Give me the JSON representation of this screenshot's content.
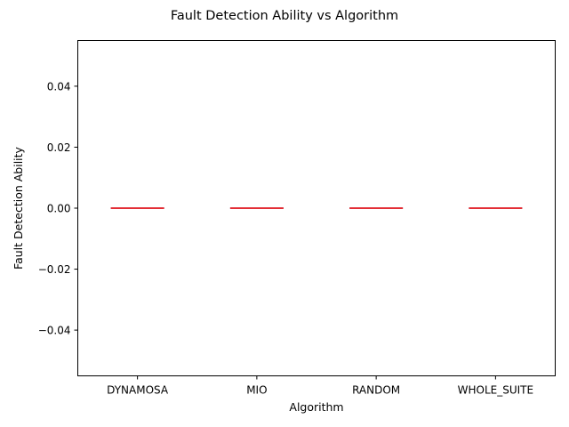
{
  "chart_data": {
    "type": "box",
    "title": "Fault Detection Ability vs Algorithm",
    "xlabel": "Algorithm",
    "ylabel": "Fault Detection Ability",
    "categories": [
      "DYNAMOSA",
      "MIO",
      "RANDOM",
      "WHOLE_SUITE"
    ],
    "values": [
      0.0,
      0.0,
      0.0,
      0.0
    ],
    "ylim": [
      -0.055,
      0.055
    ],
    "yticks": [
      -0.04,
      -0.02,
      0.0,
      0.02,
      0.04
    ],
    "ytick_labels": [
      "−0.04",
      "−0.02",
      "0.00",
      "0.02",
      "0.04"
    ],
    "grid": false,
    "colors": {
      "box": "#1f77b4",
      "median": "#ff0000",
      "axes": "#000000"
    }
  }
}
